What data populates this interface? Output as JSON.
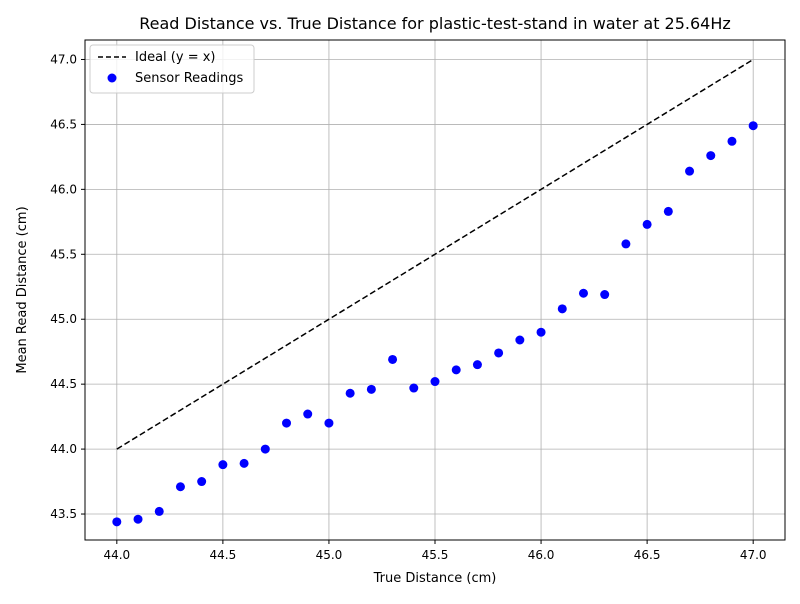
{
  "chart_data": {
    "type": "scatter",
    "title": "Read Distance vs. True Distance for plastic-test-stand in water at 25.64Hz",
    "xlabel": "True Distance (cm)",
    "ylabel": "Mean Read Distance (cm)",
    "xlim": [
      43.85,
      47.15
    ],
    "ylim": [
      43.3,
      47.15
    ],
    "x_ticks": [
      44.0,
      44.5,
      45.0,
      45.5,
      46.0,
      46.5,
      47.0
    ],
    "x_tick_labels": [
      "44.0",
      "44.5",
      "45.0",
      "45.5",
      "46.0",
      "46.5",
      "47.0"
    ],
    "y_ticks": [
      43.5,
      44.0,
      44.5,
      45.0,
      45.5,
      46.0,
      46.5,
      47.0
    ],
    "y_tick_labels": [
      "43.5",
      "44.0",
      "44.5",
      "45.0",
      "45.5",
      "46.0",
      "46.5",
      "47.0"
    ],
    "grid": true,
    "legend_position": "top-left",
    "series": [
      {
        "name": "Ideal (y = x)",
        "kind": "line",
        "style": "dashed",
        "color": "#000000",
        "x": [
          44.0,
          47.0
        ],
        "y": [
          44.0,
          47.0
        ]
      },
      {
        "name": "Sensor Readings",
        "kind": "scatter",
        "color": "#0000ff",
        "x": [
          44.0,
          44.1,
          44.2,
          44.3,
          44.4,
          44.5,
          44.6,
          44.7,
          44.8,
          44.9,
          45.0,
          45.1,
          45.2,
          45.3,
          45.4,
          45.5,
          45.6,
          45.7,
          45.8,
          45.9,
          46.0,
          46.1,
          46.2,
          46.3,
          46.4,
          46.5,
          46.6,
          46.7,
          46.8,
          46.9,
          47.0
        ],
        "y": [
          43.44,
          43.46,
          43.52,
          43.71,
          43.75,
          43.88,
          43.89,
          44.0,
          44.2,
          44.27,
          44.2,
          44.43,
          44.46,
          44.69,
          44.47,
          44.52,
          44.61,
          44.65,
          44.74,
          44.84,
          44.9,
          45.08,
          45.2,
          45.19,
          45.58,
          45.73,
          45.83,
          46.14,
          46.26,
          46.37,
          46.49
        ]
      }
    ]
  }
}
